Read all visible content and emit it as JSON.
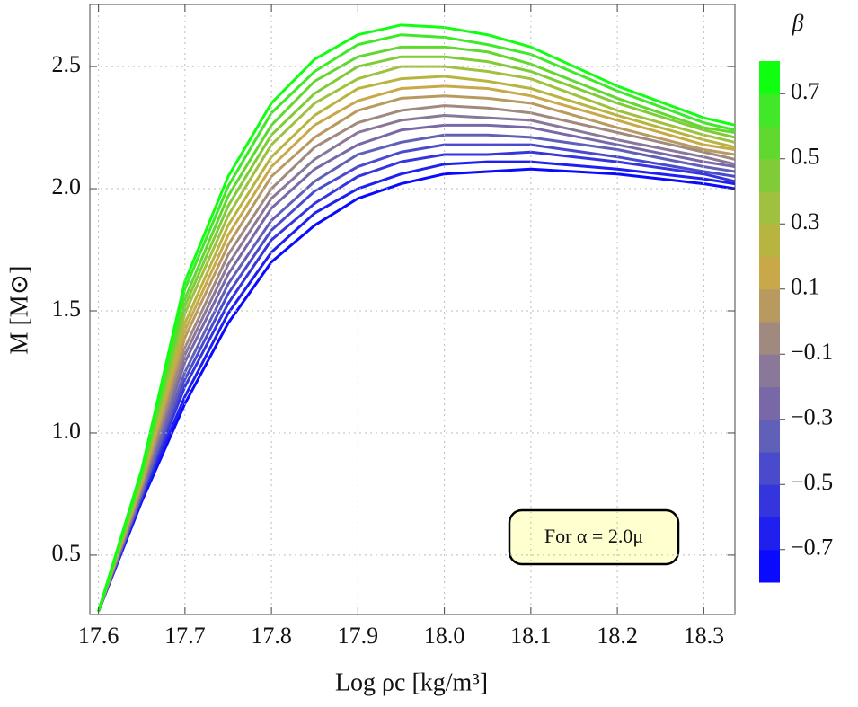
{
  "chart_data": {
    "type": "line",
    "xlabel": "Log ρc [kg/m³]",
    "ylabel": "M [M⊙]",
    "annotation": "For α = 2.0μ",
    "x": [
      17.6,
      17.65,
      17.7,
      17.75,
      17.8,
      17.85,
      17.9,
      17.95,
      18.0,
      18.05,
      18.1,
      18.2,
      18.3,
      18.336
    ],
    "series": [
      {
        "color": "#0a0aff",
        "values": [
          0.27,
          0.72,
          1.12,
          1.45,
          1.7,
          1.85,
          1.96,
          2.02,
          2.06,
          2.07,
          2.08,
          2.06,
          2.02,
          2.0
        ]
      },
      {
        "color": "#2020ee",
        "values": [
          0.27,
          0.73,
          1.15,
          1.49,
          1.74,
          1.9,
          2.0,
          2.06,
          2.1,
          2.11,
          2.11,
          2.08,
          2.04,
          2.02
        ]
      },
      {
        "color": "#3535dd",
        "values": [
          0.27,
          0.74,
          1.19,
          1.53,
          1.79,
          1.94,
          2.05,
          2.11,
          2.14,
          2.14,
          2.15,
          2.11,
          2.06,
          2.03
        ]
      },
      {
        "color": "#4a4acc",
        "values": [
          0.27,
          0.75,
          1.22,
          1.57,
          1.83,
          1.99,
          2.09,
          2.15,
          2.18,
          2.18,
          2.18,
          2.13,
          2.07,
          2.05
        ]
      },
      {
        "color": "#6060b8",
        "values": [
          0.27,
          0.75,
          1.25,
          1.61,
          1.87,
          2.03,
          2.14,
          2.19,
          2.22,
          2.22,
          2.21,
          2.16,
          2.09,
          2.07
        ]
      },
      {
        "color": "#7868a8",
        "values": [
          0.27,
          0.76,
          1.29,
          1.65,
          1.92,
          2.08,
          2.18,
          2.24,
          2.26,
          2.26,
          2.25,
          2.18,
          2.11,
          2.09
        ]
      },
      {
        "color": "#8a7898",
        "values": [
          0.27,
          0.77,
          1.32,
          1.69,
          1.96,
          2.12,
          2.23,
          2.28,
          2.3,
          2.29,
          2.28,
          2.2,
          2.13,
          2.1
        ]
      },
      {
        "color": "#a08a80",
        "values": [
          0.27,
          0.78,
          1.35,
          1.73,
          2.0,
          2.17,
          2.27,
          2.32,
          2.34,
          2.33,
          2.31,
          2.23,
          2.15,
          2.12
        ]
      },
      {
        "color": "#b89a60",
        "values": [
          0.27,
          0.79,
          1.39,
          1.77,
          2.05,
          2.21,
          2.32,
          2.37,
          2.38,
          2.37,
          2.35,
          2.25,
          2.16,
          2.14
        ]
      },
      {
        "color": "#c8a848",
        "values": [
          0.27,
          0.8,
          1.42,
          1.81,
          2.09,
          2.26,
          2.36,
          2.41,
          2.42,
          2.41,
          2.38,
          2.28,
          2.18,
          2.16
        ]
      },
      {
        "color": "#b8b440",
        "values": [
          0.27,
          0.81,
          1.45,
          1.85,
          2.13,
          2.3,
          2.41,
          2.45,
          2.46,
          2.44,
          2.41,
          2.3,
          2.2,
          2.17
        ]
      },
      {
        "color": "#a0c040",
        "values": [
          0.27,
          0.82,
          1.49,
          1.89,
          2.18,
          2.35,
          2.45,
          2.5,
          2.5,
          2.48,
          2.45,
          2.32,
          2.22,
          2.19
        ]
      },
      {
        "color": "#80cc38",
        "values": [
          0.27,
          0.82,
          1.52,
          1.93,
          2.22,
          2.39,
          2.5,
          2.54,
          2.54,
          2.52,
          2.48,
          2.35,
          2.24,
          2.21
        ]
      },
      {
        "color": "#60d830",
        "values": [
          0.27,
          0.83,
          1.55,
          1.97,
          2.26,
          2.44,
          2.54,
          2.58,
          2.58,
          2.56,
          2.51,
          2.37,
          2.25,
          2.23
        ]
      },
      {
        "color": "#40e828",
        "values": [
          0.27,
          0.84,
          1.59,
          2.01,
          2.31,
          2.48,
          2.59,
          2.63,
          2.62,
          2.59,
          2.55,
          2.4,
          2.27,
          2.24
        ]
      },
      {
        "color": "#10ff10",
        "values": [
          0.27,
          0.85,
          1.62,
          2.05,
          2.35,
          2.53,
          2.63,
          2.67,
          2.66,
          2.63,
          2.58,
          2.42,
          2.29,
          2.26
        ]
      }
    ],
    "xlim": [
      17.59,
      18.336
    ],
    "ylim": [
      0.257,
      2.754
    ],
    "xticks": [
      17.6,
      17.7,
      17.8,
      17.9,
      {
        "value": 18,
        "label": "18.0"
      },
      18.1,
      18.2,
      18.3
    ],
    "yticks": [
      0.5,
      {
        "value": 1,
        "label": "1.0"
      },
      1.5,
      {
        "value": 2,
        "label": "2.0"
      },
      2.5
    ],
    "grid": true,
    "colorbar": {
      "title": "β",
      "range": [
        -0.8,
        0.8
      ],
      "ticks": [
        {
          "value": -0.7,
          "label": "−0.7"
        },
        {
          "value": -0.5,
          "label": "−0.5"
        },
        {
          "value": -0.3,
          "label": "−0.3"
        },
        {
          "value": -0.1,
          "label": "−0.1"
        },
        0.1,
        0.3,
        0.5,
        0.7
      ]
    }
  }
}
